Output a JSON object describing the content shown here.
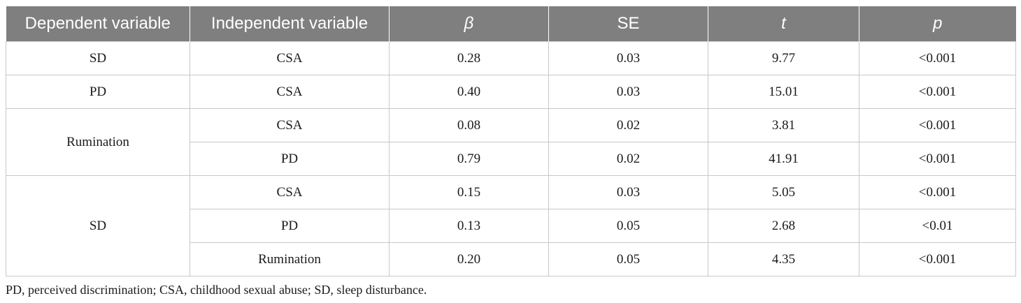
{
  "table": {
    "headers": [
      "Dependent variable",
      "Independent variable",
      "β",
      "SE",
      "t",
      "p"
    ],
    "groups": [
      {
        "dependent": "SD",
        "rows": [
          [
            "CSA",
            "0.28",
            "0.03",
            "9.77",
            "<0.001"
          ]
        ]
      },
      {
        "dependent": "PD",
        "rows": [
          [
            "CSA",
            "0.40",
            "0.03",
            "15.01",
            "<0.001"
          ]
        ]
      },
      {
        "dependent": "Rumination",
        "rows": [
          [
            "CSA",
            "0.08",
            "0.02",
            "3.81",
            "<0.001"
          ],
          [
            "PD",
            "0.79",
            "0.02",
            "41.91",
            "<0.001"
          ]
        ]
      },
      {
        "dependent": "SD",
        "rows": [
          [
            "CSA",
            "0.15",
            "0.03",
            "5.05",
            "<0.001"
          ],
          [
            "PD",
            "0.13",
            "0.05",
            "2.68",
            "<0.01"
          ],
          [
            "Rumination",
            "0.20",
            "0.05",
            "4.35",
            "<0.001"
          ]
        ]
      }
    ]
  },
  "footnote": "PD, perceived discrimination; CSA, childhood sexual abuse; SD, sleep disturbance."
}
